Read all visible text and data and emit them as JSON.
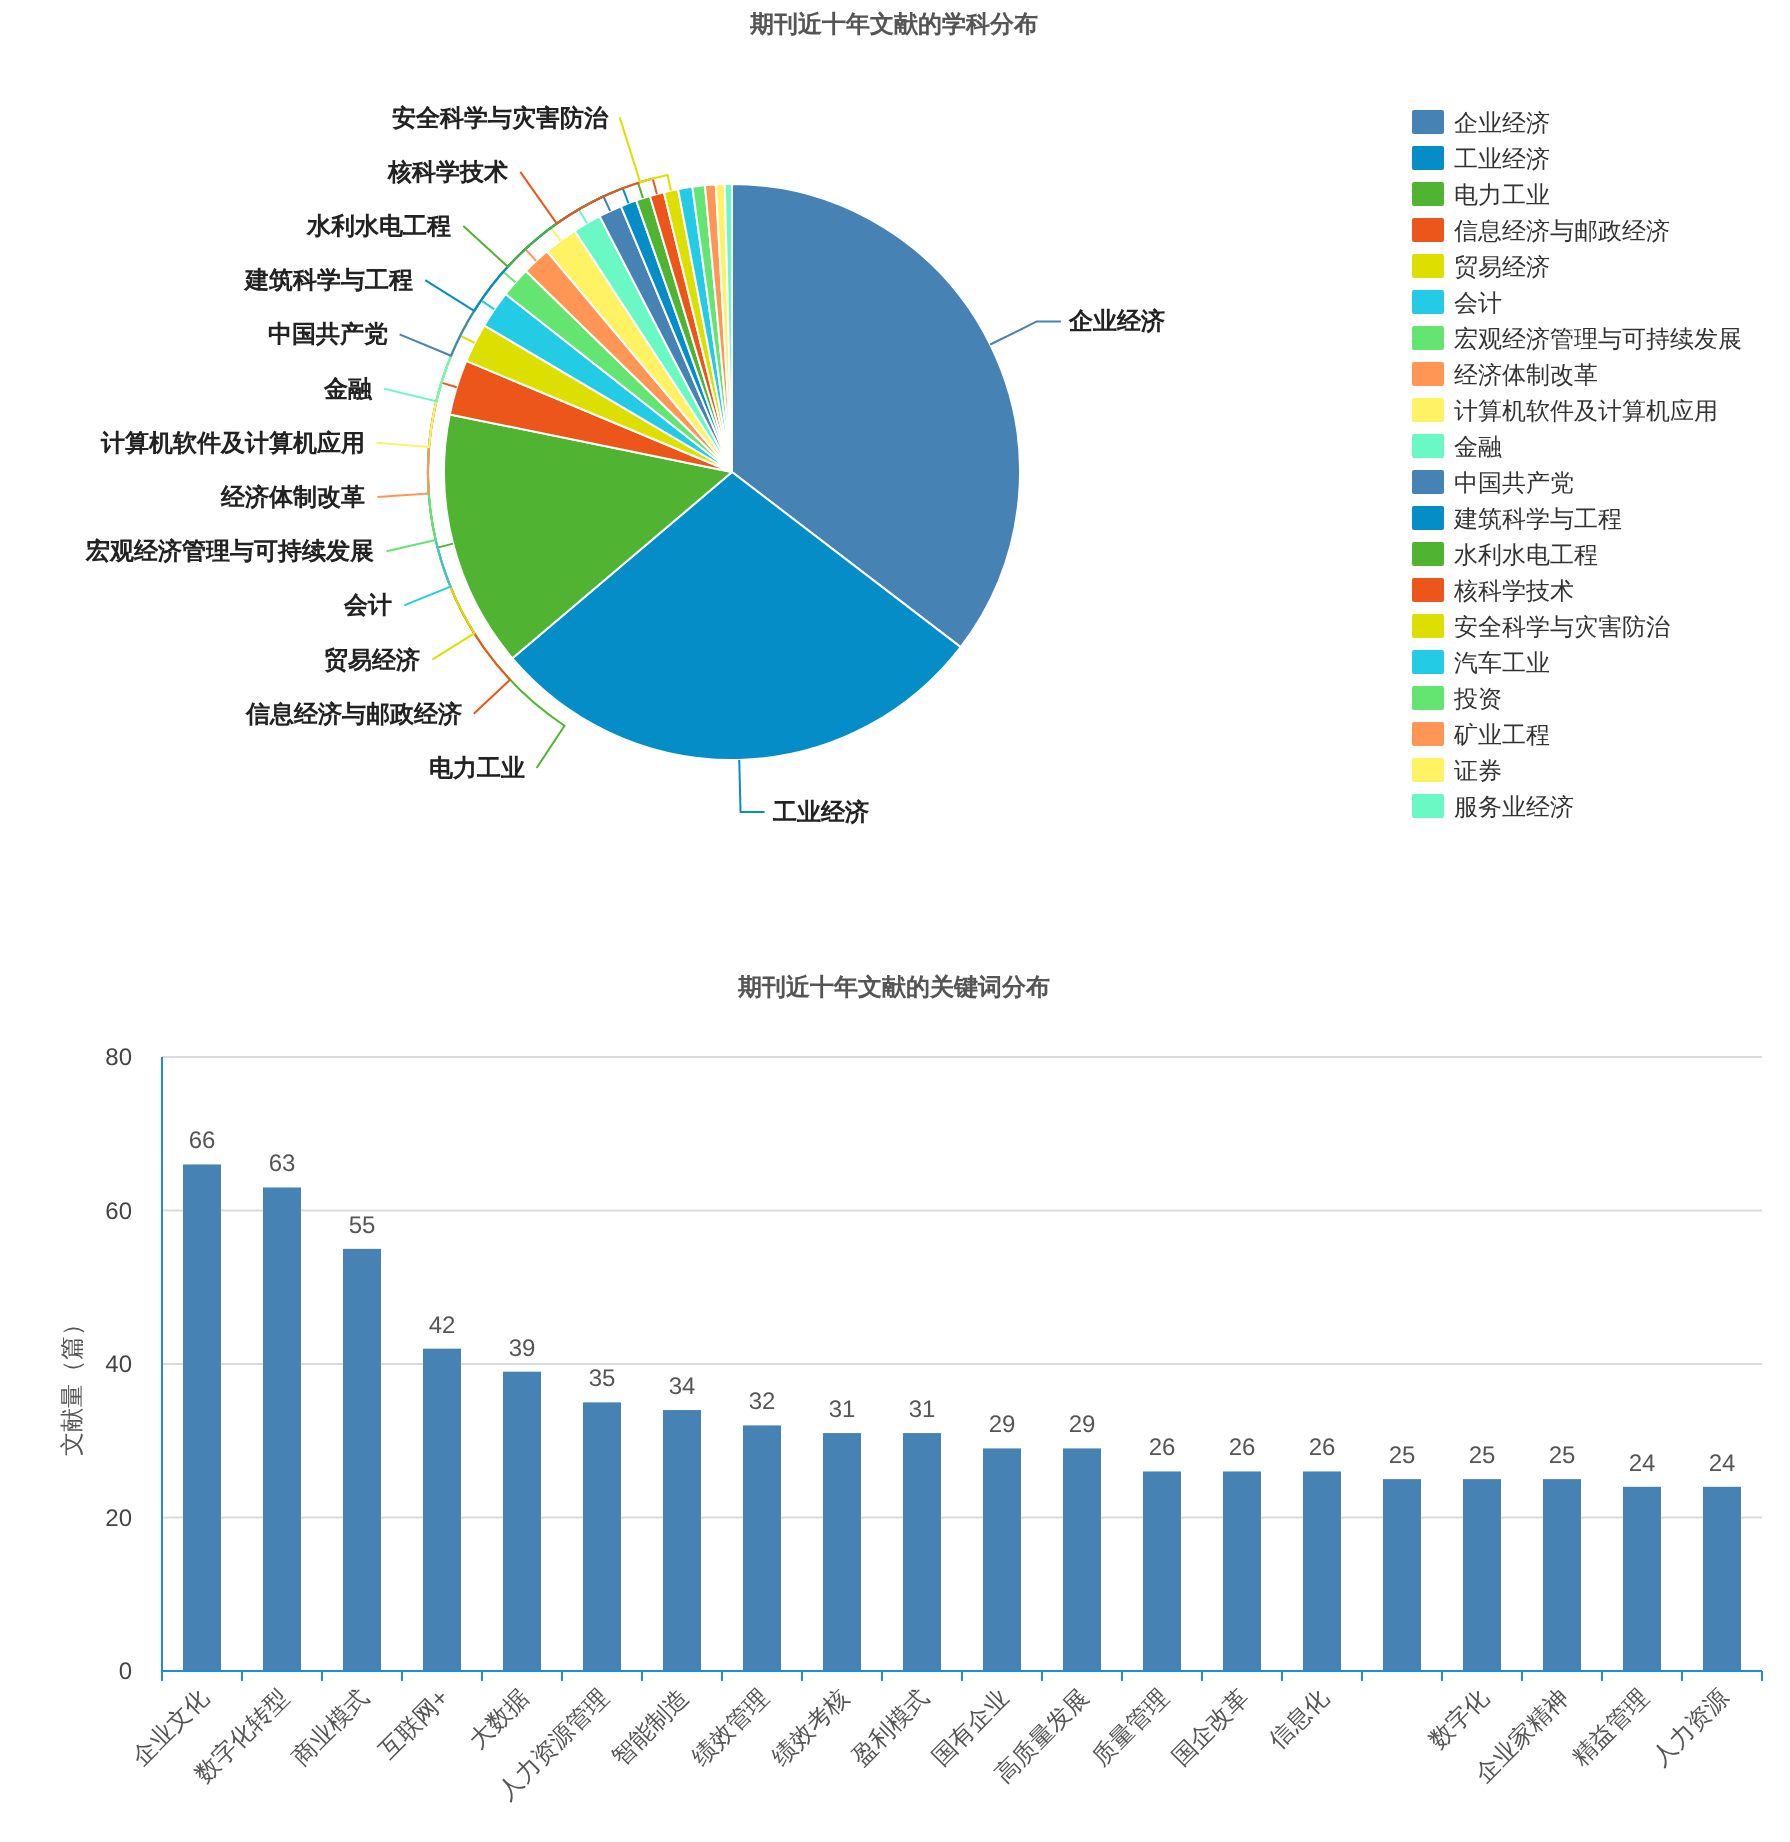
{
  "chart_data": [
    {
      "type": "pie",
      "title": "期刊近十年文献的学科分布",
      "categories": [
        "企业经济",
        "工业经济",
        "电力工业",
        "信息经济与邮政经济",
        "贸易经济",
        "会计",
        "宏观经济管理与可持续发展",
        "经济体制改革",
        "计算机软件及计算机应用",
        "金融",
        "中国共产党",
        "建筑科学与工程",
        "水利水电工程",
        "核科学技术",
        "安全科学与灾害防治",
        "汽车工业",
        "投资",
        "矿业工程",
        "证券",
        "服务业经济"
      ],
      "values": [
        35.4,
        28.4,
        14.4,
        3.1,
        2.2,
        2.1,
        1.7,
        1.6,
        1.9,
        1.6,
        1.3,
        0.9,
        0.8,
        0.8,
        0.8,
        0.8,
        0.7,
        0.6,
        0.5,
        0.4
      ],
      "colors": [
        "#4682b4",
        "#058dc7",
        "#50b432",
        "#ed561b",
        "#dddf00",
        "#24cbe5",
        "#64e572",
        "#ff9655",
        "#fff263",
        "#6af9c4",
        "#4682b4",
        "#058dc7",
        "#50b432",
        "#ed561b",
        "#dddf00",
        "#24cbe5",
        "#64e572",
        "#ff9655",
        "#fff263",
        "#6af9c4"
      ],
      "legend": "right"
    },
    {
      "type": "bar",
      "title": "期刊近十年文献的关键词分布",
      "ylabel": "文献量（篇）",
      "categories": [
        "企业文化",
        "数字化转型",
        "商业模式",
        "互联网+",
        "大数据",
        "人力资源管理",
        "智能制造",
        "绩效管理",
        "绩效考核",
        "盈利模式",
        "国有企业",
        "高质量发展",
        "质量管理",
        "国企改革",
        "信息化",
        null,
        "数字化",
        "企业家精神",
        "精益管理",
        "人力资源"
      ],
      "values": [
        66,
        63,
        55,
        42,
        39,
        35,
        34,
        32,
        31,
        31,
        29,
        29,
        26,
        26,
        26,
        25,
        25,
        25,
        24,
        24
      ],
      "color": "#4682b4",
      "ylim": [
        0,
        80
      ],
      "yticks": [
        0,
        20,
        40,
        60,
        80
      ],
      "grid": "y",
      "data_labels": true
    }
  ]
}
